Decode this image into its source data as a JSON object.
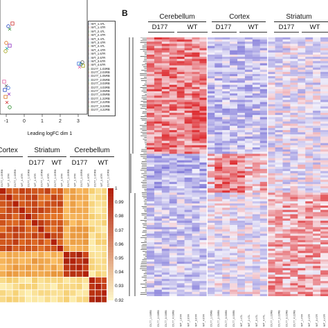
{
  "panel_b_label": "B",
  "mds_plot": {
    "xlabel": "Leading logFC dim 1",
    "x_ticks": [
      "-1",
      "0",
      "1",
      "2",
      "3"
    ],
    "legend": [
      "WT_1.47L",
      "WT_1.47R",
      "WT_2.47L",
      "WT_2.47R",
      "WT_3.47L",
      "WT_3.47R",
      "WT_4.47L",
      "WT_4.47R",
      "WT_1.67R",
      "WT_2.67R",
      "WT_3.67R",
      "WT_4.67R",
      "D177_1.03RB",
      "D177_2.03RB",
      "D177_1.05RB",
      "D177_2.05RB",
      "D177_3.03RB",
      "D177_4.03RB",
      "D177_3.05RB",
      "D177_4.05RB",
      "D177_1.22RB",
      "D177_2.22RB",
      "D177_3.22RB",
      "D177_4.22RB"
    ],
    "legend_colors": [
      "#1f3fbf",
      "#cc2a2a",
      "#2a8a2a",
      "#d96b16",
      "#8b2ac0",
      "#19a3a3",
      "#a0a010",
      "#e05aa0",
      "#555555",
      "#3a6fd8"
    ]
  },
  "corr_heatmap": {
    "regions": [
      "Cortex",
      "Striatum",
      "Cerebellum"
    ],
    "groups": [
      "D177",
      "WT",
      "D177",
      "WT"
    ],
    "colorbar_ticks": [
      "1",
      "0.99",
      "0.98",
      "0.97",
      "0.96",
      "0.95",
      "0.94",
      "0.93",
      "0.92"
    ]
  },
  "expr_heatmap": {
    "regions": [
      "Cerebellum",
      "Cortex",
      "Striatum"
    ],
    "groups": [
      "D177",
      "WT",
      "D177",
      "WT",
      "D177",
      "WT"
    ],
    "sample_labels": [
      "D177_1.03RB",
      "D177_2.03RB",
      "D177_3.03RB",
      "D177_4.03RB",
      "WT_1.67R",
      "WT_2.67R",
      "WT_3.67R",
      "WT_4.67R",
      "D177_1.05RB",
      "D177_2.05RB",
      "D177_3.05RB",
      "D177_4.05RB",
      "WT_1.47L",
      "WT_2.47L",
      "WT_3.47L",
      "WT_4.47L",
      "D177_1.22RB",
      "D177_2.22RB",
      "D177_3.22RB",
      "D177_4.22RB",
      "WT_1.47R",
      "WT_2.47R",
      "WT_3.47R",
      "WT_4.47R"
    ]
  }
}
